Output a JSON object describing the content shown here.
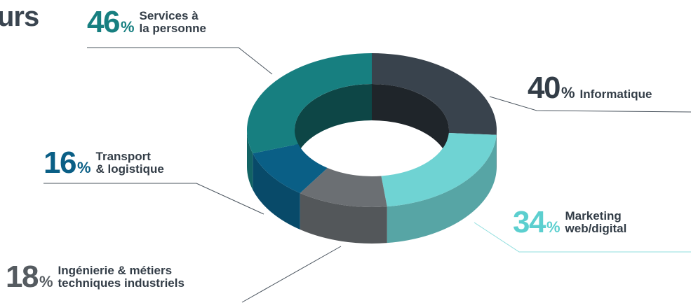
{
  "heading_fragment": "urs",
  "colors": {
    "services": "#177f80",
    "informatique": "#39434d",
    "marketing": "#6fd3d3",
    "ingenierie": "#6b6f73",
    "transport": "#0a5f86",
    "text_dark": "#333d47"
  },
  "chart_data": {
    "type": "pie",
    "style": "3d-donut",
    "title": "",
    "slices": [
      {
        "label": "Informatique",
        "value": 40,
        "value_text": "40",
        "label_lines": [
          "Informatique"
        ],
        "color": "#39434d"
      },
      {
        "label": "Marketing web/digital",
        "value": 34,
        "value_text": "34",
        "label_lines": [
          "Marketing",
          "web/digital"
        ],
        "color": "#6fd3d3"
      },
      {
        "label": "Ingénierie & métiers techniques industriels",
        "value": 18,
        "value_text": "18",
        "label_lines": [
          "Ingénierie & métiers",
          "techniques industriels"
        ],
        "color": "#6b6f73"
      },
      {
        "label": "Transport & logistique",
        "value": 16,
        "value_text": "16",
        "label_lines": [
          "Transport",
          "& logistique"
        ],
        "color": "#0a5f86"
      },
      {
        "label": "Services à la personne",
        "value": 46,
        "value_text": "46",
        "label_lines": [
          "Services à",
          "la personne"
        ],
        "color": "#177f80"
      }
    ],
    "percent_symbol": "%"
  }
}
